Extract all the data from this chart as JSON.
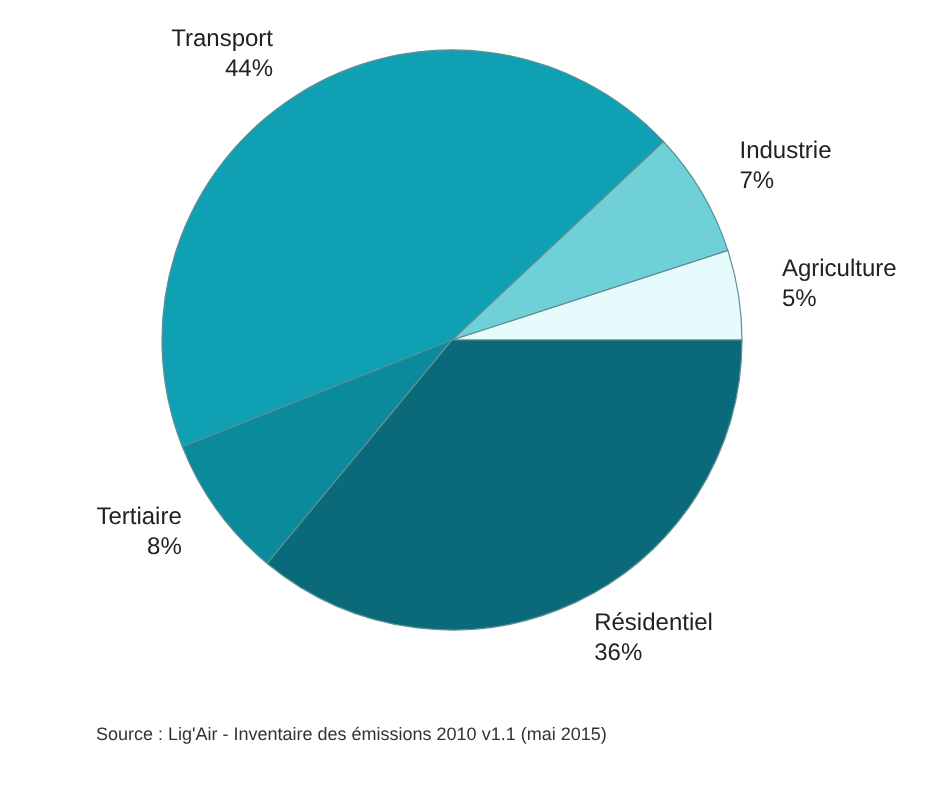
{
  "chart_data": {
    "type": "pie",
    "categories": [
      "Agriculture",
      "Industrie",
      "Transport",
      "Tertiaire",
      "Résidentiel"
    ],
    "values": [
      5,
      7,
      44,
      8,
      36
    ],
    "value_labels": [
      "5%",
      "7%",
      "44%",
      "8%",
      "36%"
    ],
    "colors": [
      "#e8fbfc",
      "#6fd0d8",
      "#0fa0b4",
      "#0a8a9a",
      "#0a6a7a"
    ],
    "annotations": [
      "Source : Lig'Air - Inventaire des émissions 2010 v1.1 (mai 2015)"
    ]
  }
}
